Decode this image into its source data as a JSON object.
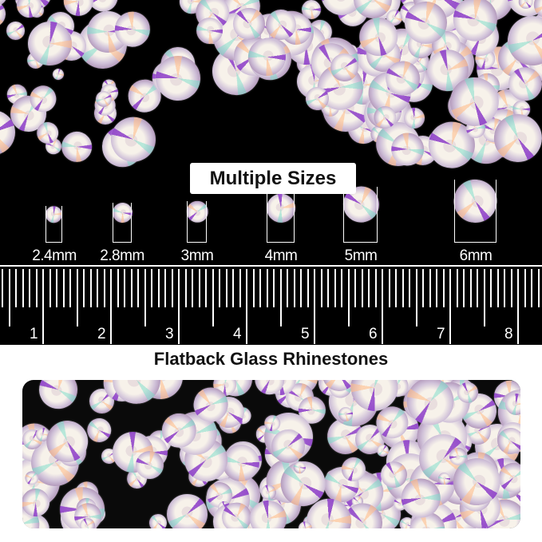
{
  "header_label": "Multiple Sizes",
  "sizes": [
    {
      "label": "2.4mm",
      "mm": 2.4
    },
    {
      "label": "2.8mm",
      "mm": 2.8
    },
    {
      "label": "3mm",
      "mm": 3
    },
    {
      "label": "4mm",
      "mm": 4
    },
    {
      "label": "5mm",
      "mm": 5
    },
    {
      "label": "6mm",
      "mm": 6
    }
  ],
  "ruler": {
    "labels": [
      "1",
      "2",
      "3",
      "4",
      "5",
      "6",
      "7",
      "8"
    ]
  },
  "product_title": "Flatback Glass Rhinestones",
  "colors": {
    "background_top": "#000000",
    "accent_purple": "#8c3cc8",
    "text": "#111111"
  }
}
